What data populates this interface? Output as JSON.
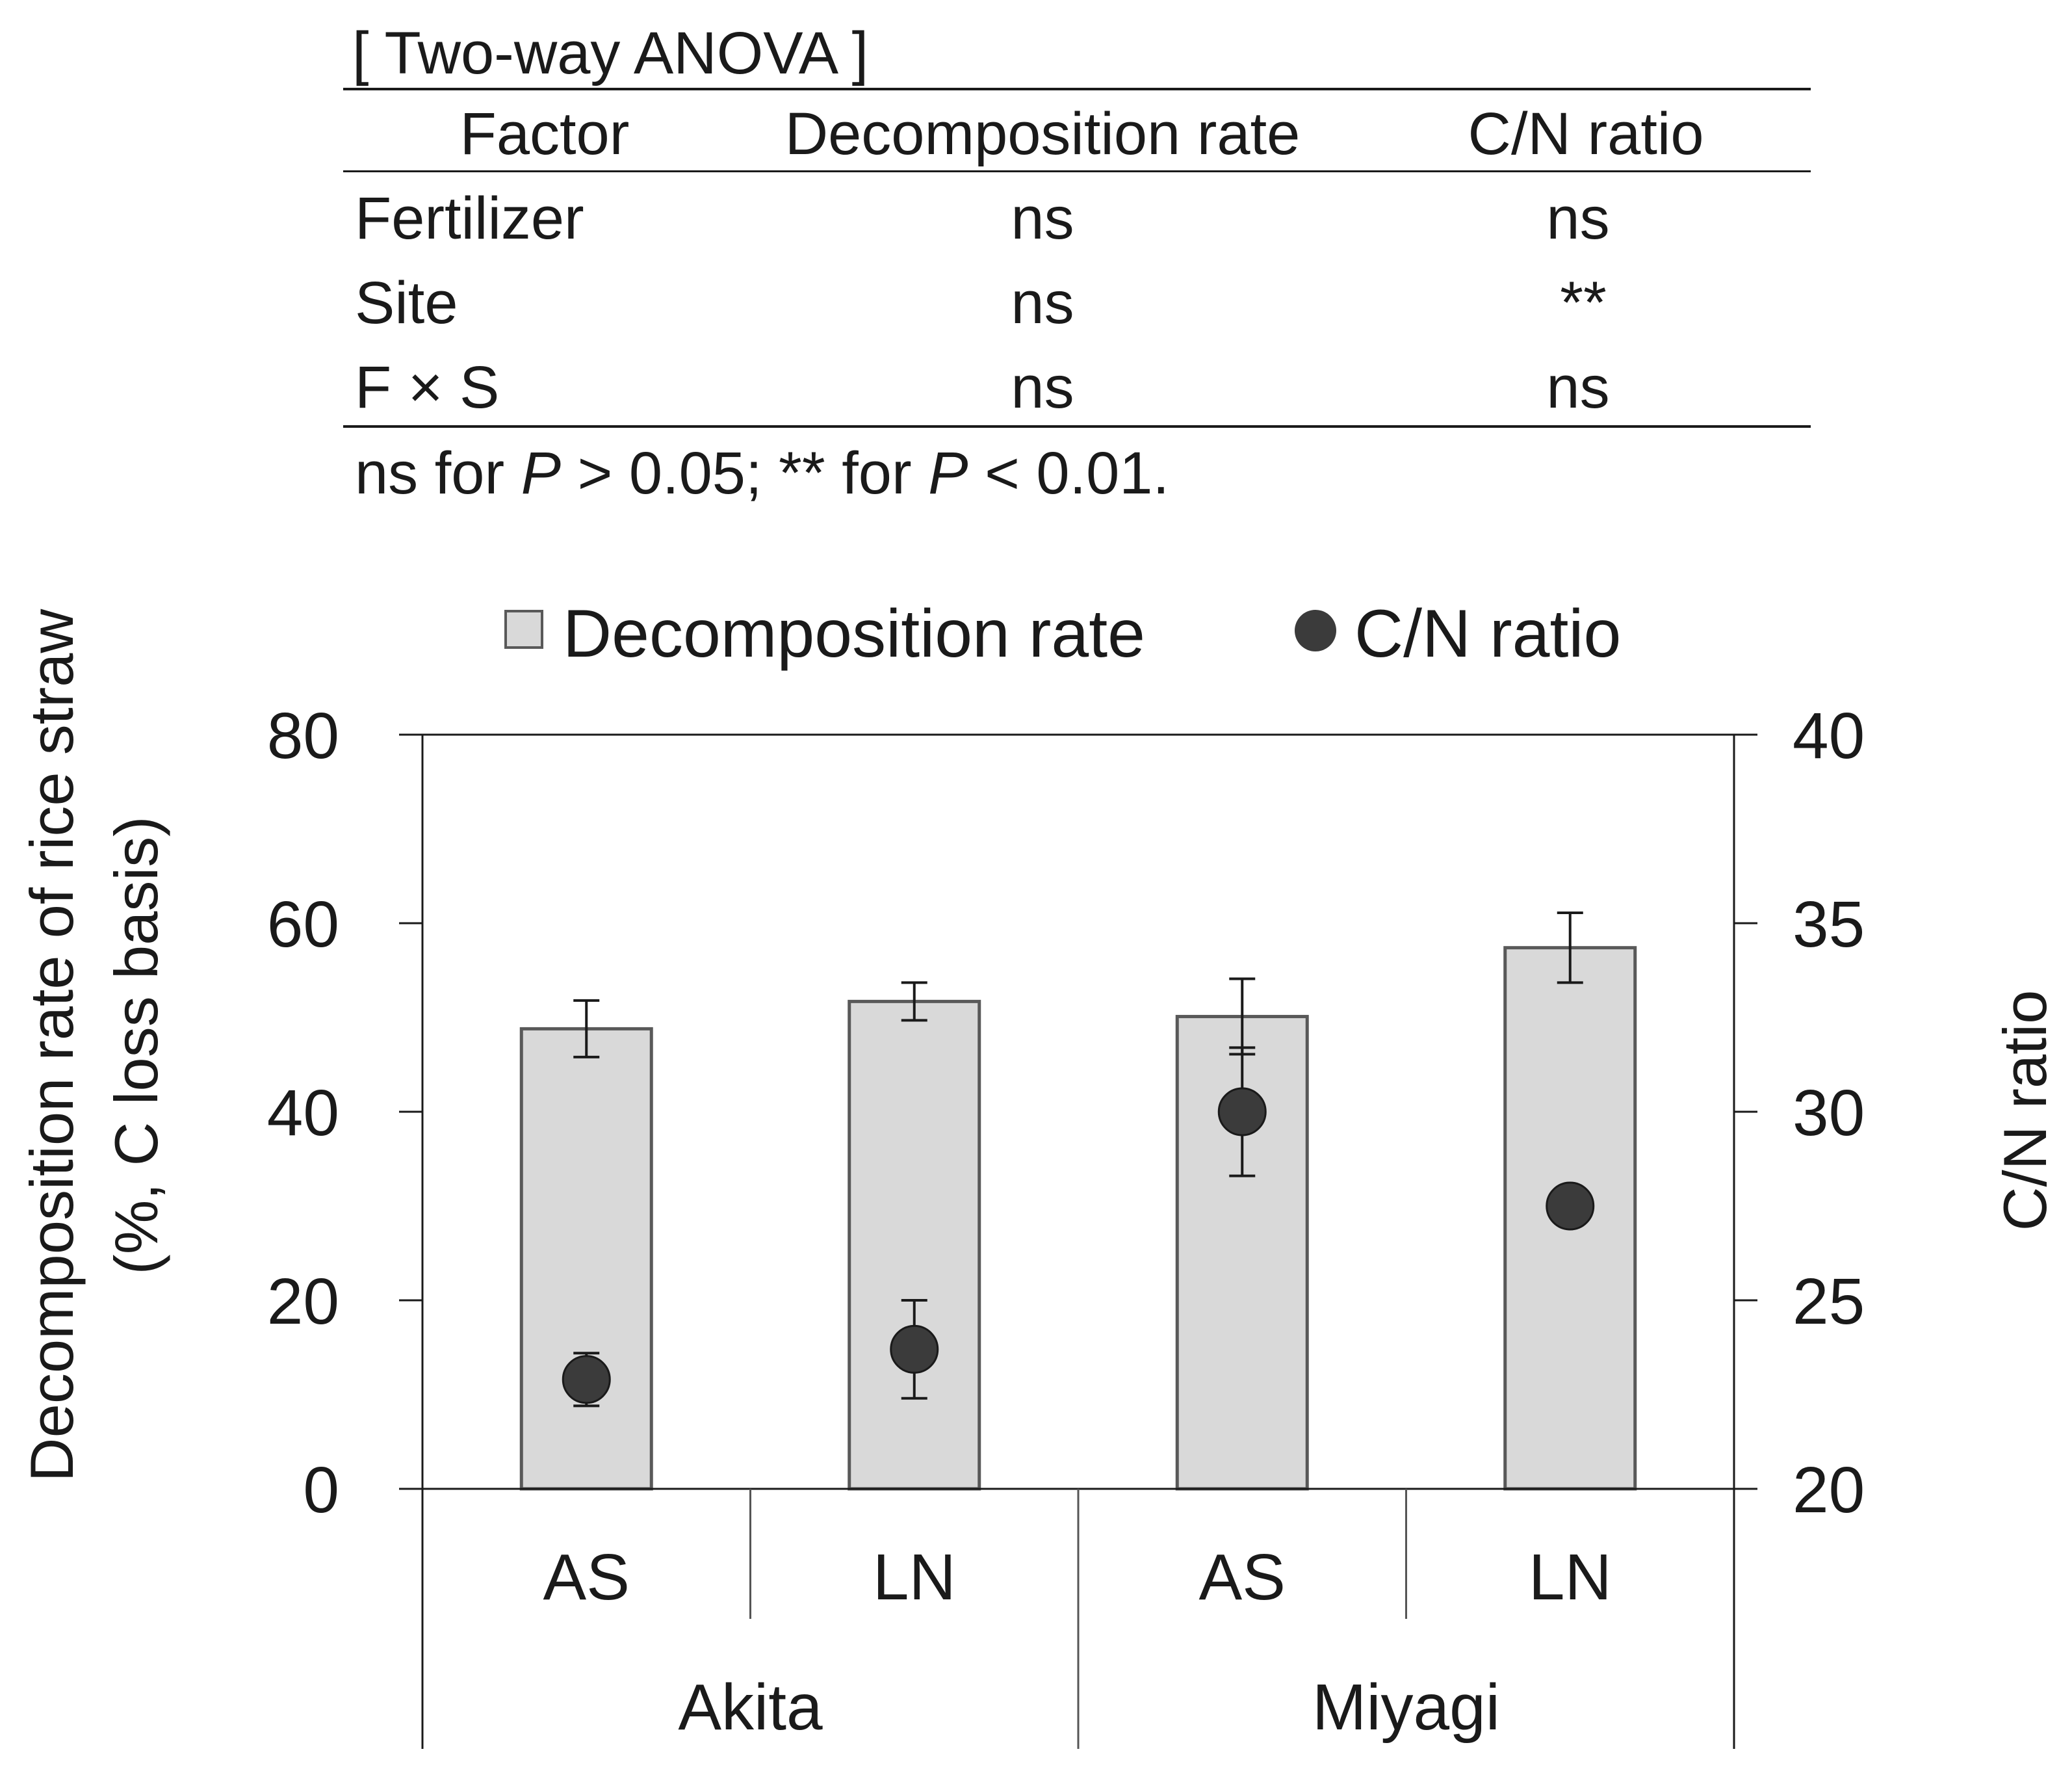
{
  "anova_table": {
    "title": "[ Two-way ANOVA ]",
    "headers": [
      "Factor",
      "Decomposition rate",
      "C/N ratio"
    ],
    "rows": [
      {
        "factor": "Fertilizer",
        "decomposition": "ns",
        "cn": "ns"
      },
      {
        "factor": "Site",
        "decomposition": "ns",
        "cn": "**"
      },
      {
        "factor": "F × S",
        "decomposition": "ns",
        "cn": "ns"
      }
    ],
    "footnote": {
      "part1": "ns for ",
      "p1": "P",
      "part2": " > 0.05;  ** for ",
      "p2": "P",
      "part3": " < 0.01."
    }
  },
  "chart_data": {
    "type": "bar",
    "legend": [
      {
        "label": "Decomposition rate",
        "marker": "square"
      },
      {
        "label": "C/N ratio",
        "marker": "circle"
      }
    ],
    "categories": [
      "AS",
      "LN",
      "AS",
      "LN"
    ],
    "groups": [
      {
        "label": "Akita",
        "categories": [
          "AS",
          "LN"
        ]
      },
      {
        "label": "Miyagi",
        "categories": [
          "AS",
          "LN"
        ]
      }
    ],
    "series": [
      {
        "name": "Decomposition rate",
        "axis": "left",
        "kind": "bar",
        "values": [
          48.8,
          51.7,
          50.1,
          57.4
        ],
        "errors": [
          3.0,
          2.0,
          4.0,
          3.7
        ]
      },
      {
        "name": "C/N ratio",
        "axis": "right",
        "kind": "point",
        "values": [
          22.9,
          23.7,
          30.0,
          27.5
        ],
        "errors": [
          0.7,
          1.3,
          1.7,
          0.3
        ]
      }
    ],
    "ylabel_left_line1": "Decomposition rate of rice straw",
    "ylabel_left_line2": "(%, C loss basis)",
    "ylabel_right": "C/N ratio",
    "ylim_left": [
      0,
      80
    ],
    "yticks_left": [
      "0",
      "20",
      "40",
      "60",
      "80"
    ],
    "ylim_right": [
      20,
      40
    ],
    "yticks_right": [
      "20",
      "25",
      "30",
      "35",
      "40"
    ],
    "colors": {
      "bar_fill": "#d9d9d9",
      "bar_stroke": "#595959",
      "point_fill": "#3b3b3b",
      "axis": "#1a1a1a"
    }
  }
}
